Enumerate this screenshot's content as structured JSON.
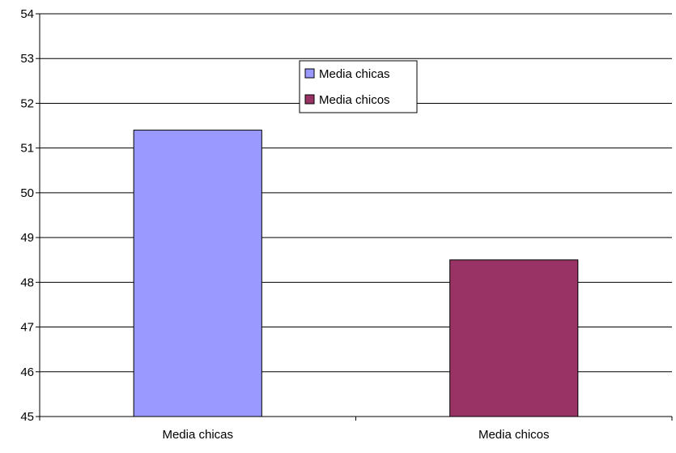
{
  "chart_data": {
    "type": "bar",
    "categories": [
      "Media chicas",
      "Media chicos"
    ],
    "values": [
      51.4,
      48.5
    ],
    "colors": [
      "#9999ff",
      "#993366"
    ],
    "ylim": [
      45,
      54
    ],
    "yticks": [
      45,
      46,
      47,
      48,
      49,
      50,
      51,
      52,
      53,
      54
    ],
    "grid": true,
    "legend": {
      "position": "top-center",
      "entries": [
        {
          "label": "Media chicas",
          "color": "#9999ff"
        },
        {
          "label": "Media chicos",
          "color": "#993366"
        }
      ]
    }
  }
}
